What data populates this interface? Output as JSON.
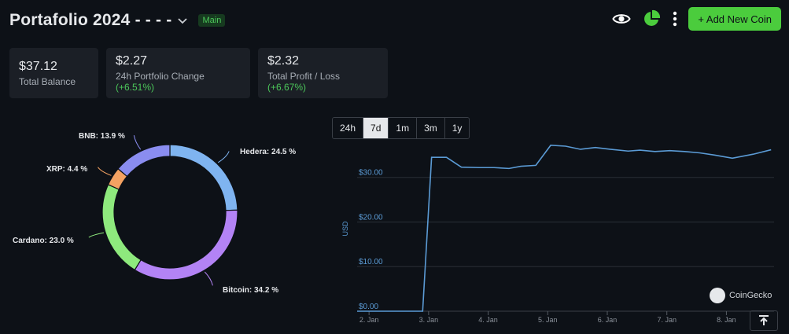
{
  "header": {
    "title": "Portafolio 2024 - - - -",
    "badge": "Main",
    "add_button": "+ Add New Coin"
  },
  "stats": [
    {
      "value": "$37.12",
      "label": "Total Balance",
      "change": ""
    },
    {
      "value": "$2.27",
      "label": "24h Portfolio Change",
      "change": "(+6.51%)"
    },
    {
      "value": "$2.32",
      "label": "Total Profit / Loss",
      "change": "(+6.67%)"
    }
  ],
  "allocation": {
    "items": [
      {
        "name": "Hedera",
        "label": "Hedera: 24.5 %",
        "value": 24.5,
        "color": "#7fb4f0"
      },
      {
        "name": "Bitcoin",
        "label": "Bitcoin: 34.2 %",
        "value": 34.2,
        "color": "#b383f5"
      },
      {
        "name": "Cardano",
        "label": "Cardano: 23.0 %",
        "value": 23.0,
        "color": "#8ee97d"
      },
      {
        "name": "XRP",
        "label": "XRP: 4.4 %",
        "value": 4.4,
        "color": "#f4a262"
      },
      {
        "name": "BNB",
        "label": "BNB: 13.9 %",
        "value": 13.9,
        "color": "#8a8df0"
      }
    ]
  },
  "timeframes": {
    "options": [
      "24h",
      "7d",
      "1m",
      "3m",
      "1y"
    ],
    "selected": "7d"
  },
  "chart_data": {
    "type": "line",
    "ylabel": "USD",
    "ylim": [
      0,
      37
    ],
    "yticks": [
      "$0.00",
      "$10.00",
      "$20.00",
      "$30.00"
    ],
    "yticks_values": [
      0,
      10,
      20,
      30
    ],
    "xticks": [
      "2. Jan",
      "3. Jan",
      "4. Jan",
      "5. Jan",
      "6. Jan",
      "7. Jan",
      "8. Jan"
    ],
    "xlim": [
      1.8,
      8.8
    ],
    "x": [
      1.8,
      2.9,
      3.05,
      3.3,
      3.55,
      3.85,
      4.1,
      4.35,
      4.55,
      4.8,
      5.05,
      5.3,
      5.55,
      5.8,
      6.05,
      6.35,
      6.55,
      6.8,
      7.05,
      7.3,
      7.55,
      7.8,
      8.1,
      8.45,
      8.75
    ],
    "values": [
      0,
      0,
      34.5,
      34.5,
      32.3,
      32.2,
      32.2,
      32.0,
      32.5,
      32.7,
      37.2,
      37.0,
      36.3,
      36.7,
      36.3,
      35.9,
      36.1,
      35.8,
      36.0,
      35.8,
      35.5,
      35.0,
      34.3,
      35.2,
      36.2
    ],
    "color": "#5b9bd5",
    "watermark": "CoinGecko"
  }
}
